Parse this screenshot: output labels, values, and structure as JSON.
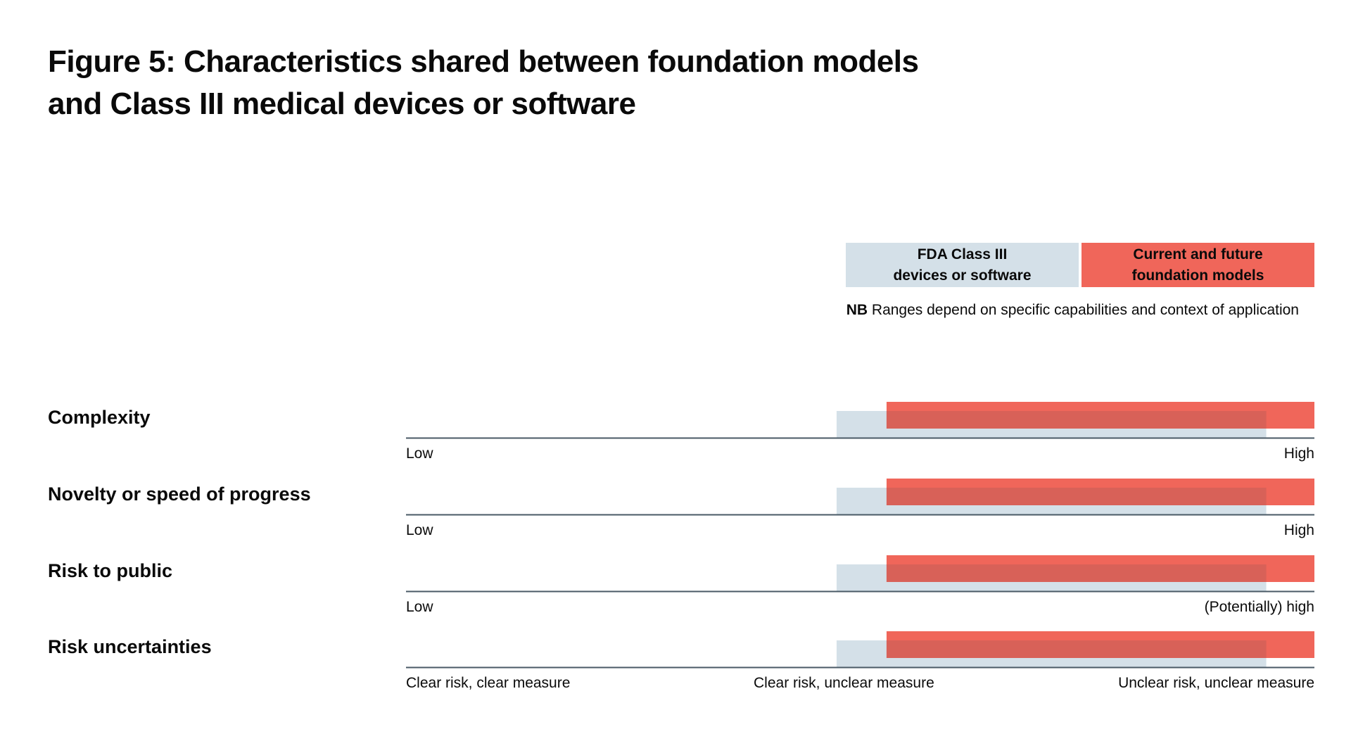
{
  "title": {
    "line1": "Figure 5: Characteristics shared between foundation models",
    "line2": "and Class III medical devices or software"
  },
  "legend": {
    "fda": {
      "line1": "FDA Class III",
      "line2": "devices or software",
      "color": "#d4e0e8"
    },
    "foundation": {
      "line1": "Current and future",
      "line2": "foundation models",
      "color": "#f0665a"
    }
  },
  "note": {
    "bold": "NB",
    "text": " Ranges depend on specific capabilities and context of application"
  },
  "colors": {
    "overlap": "#d86158",
    "axis": "#4a5a66"
  },
  "chart_data": {
    "type": "range-bar",
    "title": "Figure 5: Characteristics shared between foundation models and Class III medical devices or software",
    "scale": [
      0,
      1
    ],
    "series": [
      {
        "name": "FDA Class III devices or software",
        "color": "#d4e0e8"
      },
      {
        "name": "Current and future foundation models",
        "color": "#f0665a"
      }
    ],
    "rows": [
      {
        "label": "Complexity",
        "axis_labels": [
          "Low",
          "",
          "High"
        ],
        "ranges": {
          "FDA Class III devices or software": [
            0.474,
            0.947
          ],
          "Current and future foundation models": [
            0.529,
            1.0
          ]
        }
      },
      {
        "label": "Novelty or speed of progress",
        "axis_labels": [
          "Low",
          "",
          "High"
        ],
        "ranges": {
          "FDA Class III devices or software": [
            0.474,
            0.947
          ],
          "Current and future foundation models": [
            0.529,
            1.0
          ]
        }
      },
      {
        "label": "Risk to public",
        "axis_labels": [
          "Low",
          "",
          "(Potentially) high"
        ],
        "ranges": {
          "FDA Class III devices or software": [
            0.474,
            0.947
          ],
          "Current and future foundation models": [
            0.529,
            1.0
          ]
        }
      },
      {
        "label": "Risk uncertainties",
        "axis_labels": [
          "Clear risk, clear measure",
          "Clear risk, unclear measure",
          "Unclear risk, unclear measure"
        ],
        "ranges": {
          "FDA Class III devices or software": [
            0.474,
            0.947
          ],
          "Current and future foundation models": [
            0.529,
            1.0
          ]
        }
      }
    ]
  }
}
